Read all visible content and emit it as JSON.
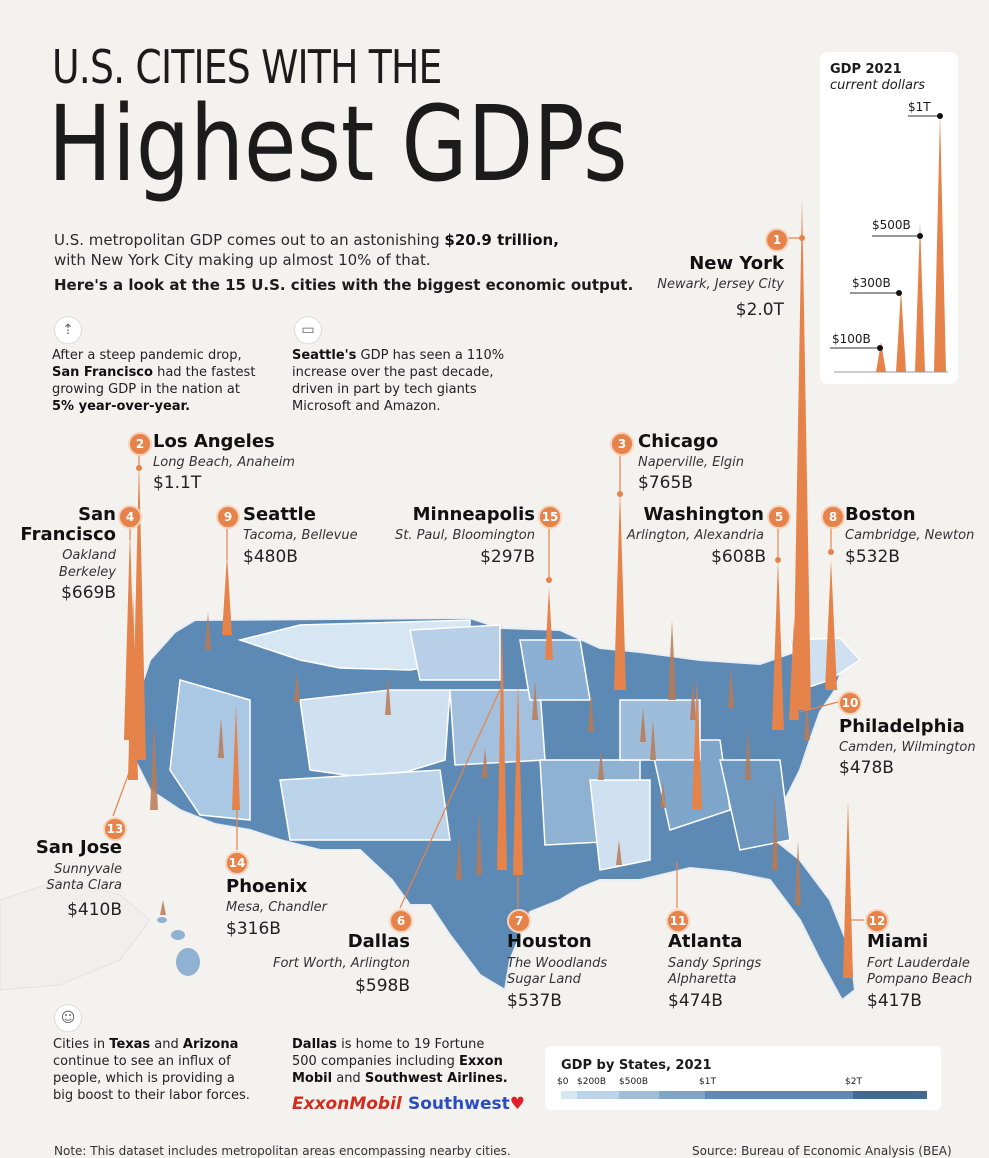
{
  "title": {
    "line1": "U.S. CITIES WITH THE",
    "line2": "Highest GDPs"
  },
  "intro": {
    "sentence_pre": "U.S. metropolitan GDP comes out to an astonishing ",
    "total": "$20.9 trillion,",
    "sentence_post": "with New York City making up almost 10% of that.",
    "lead": "Here's a look at the 15 U.S. cities with the biggest economic output."
  },
  "notes": {
    "sf": {
      "a": "After a steep pandemic drop,",
      "b": "San Francisco",
      "c": " had the fastest",
      "d": "growing GDP in the nation at",
      "e": "5% year-over-year."
    },
    "seattle": {
      "a": "Seattle's",
      "b": " GDP has seen a 110%",
      "c": "increase over the past decade,",
      "d": "driven in part by tech giants",
      "e": "Microsoft and Amazon."
    },
    "texas": {
      "a": "Cities in ",
      "b": "Texas",
      "c": " and ",
      "d": "Arizona",
      "e": "continue to see an influx of",
      "f": "people, which is providing a",
      "g": "big boost to their labor forces."
    },
    "dallas": {
      "a": "Dallas",
      "b": " is home to 19 Fortune",
      "c": "500 companies including ",
      "d": "Exxon",
      "e": "Mobil",
      "f": " and ",
      "g": "Southwest Airlines."
    }
  },
  "brands": {
    "exxon": "ExxonMobil",
    "southwest": "Southwest"
  },
  "cities": [
    {
      "rank": "1",
      "name": "New York",
      "sub": "Newark, Jersey City",
      "value": "$2.0T"
    },
    {
      "rank": "2",
      "name": "Los Angeles",
      "sub": "Long Beach, Anaheim",
      "value": "$1.1T"
    },
    {
      "rank": "3",
      "name": "Chicago",
      "sub": "Naperville, Elgin",
      "value": "$765B"
    },
    {
      "rank": "4",
      "name": "San",
      "name2": "Francisco",
      "sub": "Oakland",
      "sub2": "Berkeley",
      "value": "$669B"
    },
    {
      "rank": "5",
      "name": "Washington",
      "sub": "Arlington, Alexandria",
      "value": "$608B"
    },
    {
      "rank": "6",
      "name": "Dallas",
      "sub": "Fort Worth, Arlington",
      "value": "$598B"
    },
    {
      "rank": "7",
      "name": "Houston",
      "sub": "The Woodlands",
      "sub2": "Sugar Land",
      "value": "$537B"
    },
    {
      "rank": "8",
      "name": "Boston",
      "sub": "Cambridge, Newton",
      "value": "$532B"
    },
    {
      "rank": "9",
      "name": "Seattle",
      "sub": "Tacoma, Bellevue",
      "value": "$480B"
    },
    {
      "rank": "10",
      "name": "Philadelphia",
      "sub": "Camden, Wilmington",
      "value": "$478B"
    },
    {
      "rank": "11",
      "name": "Atlanta",
      "sub": "Sandy Springs",
      "sub2": "Alpharetta",
      "value": "$474B"
    },
    {
      "rank": "12",
      "name": "Miami",
      "sub": "Fort Lauderdale",
      "sub2": "Pompano Beach",
      "value": "$417B"
    },
    {
      "rank": "13",
      "name": "San Jose",
      "sub": "Sunnyvale",
      "sub2": "Santa Clara",
      "value": "$410B"
    },
    {
      "rank": "14",
      "name": "Phoenix",
      "sub": "Mesa, Chandler",
      "value": "$316B"
    },
    {
      "rank": "15",
      "name": "Minneapolis",
      "sub": "St. Paul,  Bloomington",
      "value": "$297B"
    }
  ],
  "spike_legend": {
    "title": "GDP 2021",
    "subtitle": "current dollars",
    "labels": [
      "$1T",
      "$500B",
      "$300B",
      "$100B"
    ]
  },
  "state_scale": {
    "title": "GDP by States, 2021",
    "ticks": [
      "$0",
      "$200B",
      "$500B",
      "$1T",
      "$2T"
    ]
  },
  "footer": {
    "left": "Note: This dataset includes metropolitan areas encompassing nearby cities.",
    "right": "Source: Bureau of Economic Analysis (BEA)"
  },
  "colors": {
    "spike": "#e5834a",
    "state_light": "#cfe1f1",
    "state_mid": "#8fb1d2",
    "state_dark": "#4f7fa8",
    "background": "#f4f2ef"
  }
}
